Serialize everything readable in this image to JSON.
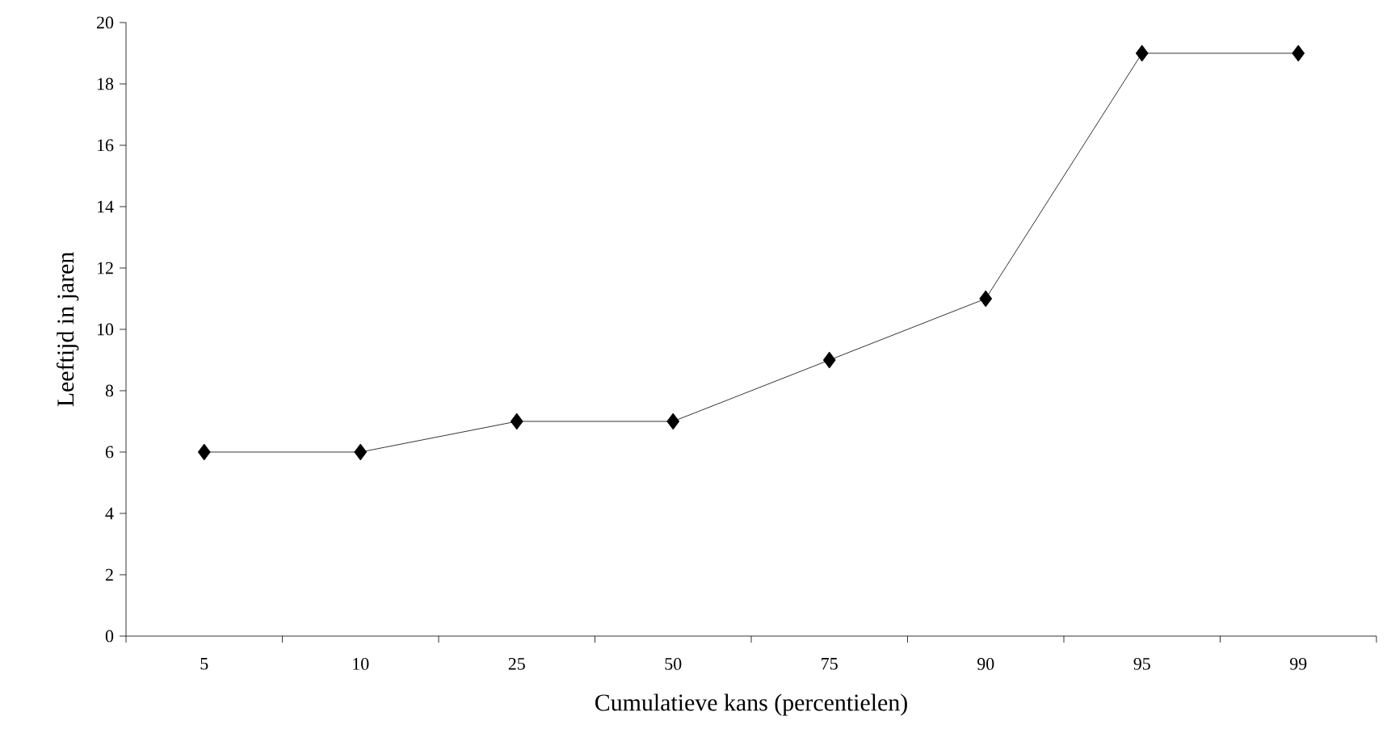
{
  "chart_data": {
    "type": "line",
    "xlabel": "Cumulatieve kans (percentielen)",
    "ylabel": "Leeftijd in jaren",
    "categories": [
      "5",
      "10",
      "25",
      "50",
      "75",
      "90",
      "95",
      "99"
    ],
    "series": [
      {
        "color": "#000000",
        "values": [
          6,
          6,
          7,
          7,
          9,
          11,
          19,
          19
        ]
      }
    ],
    "ylim": [
      0,
      20
    ],
    "yticks": [
      0,
      2,
      4,
      6,
      8,
      10,
      12,
      14,
      16,
      18,
      20
    ],
    "grid": false,
    "marker": "diamond",
    "line_style": "solid"
  }
}
